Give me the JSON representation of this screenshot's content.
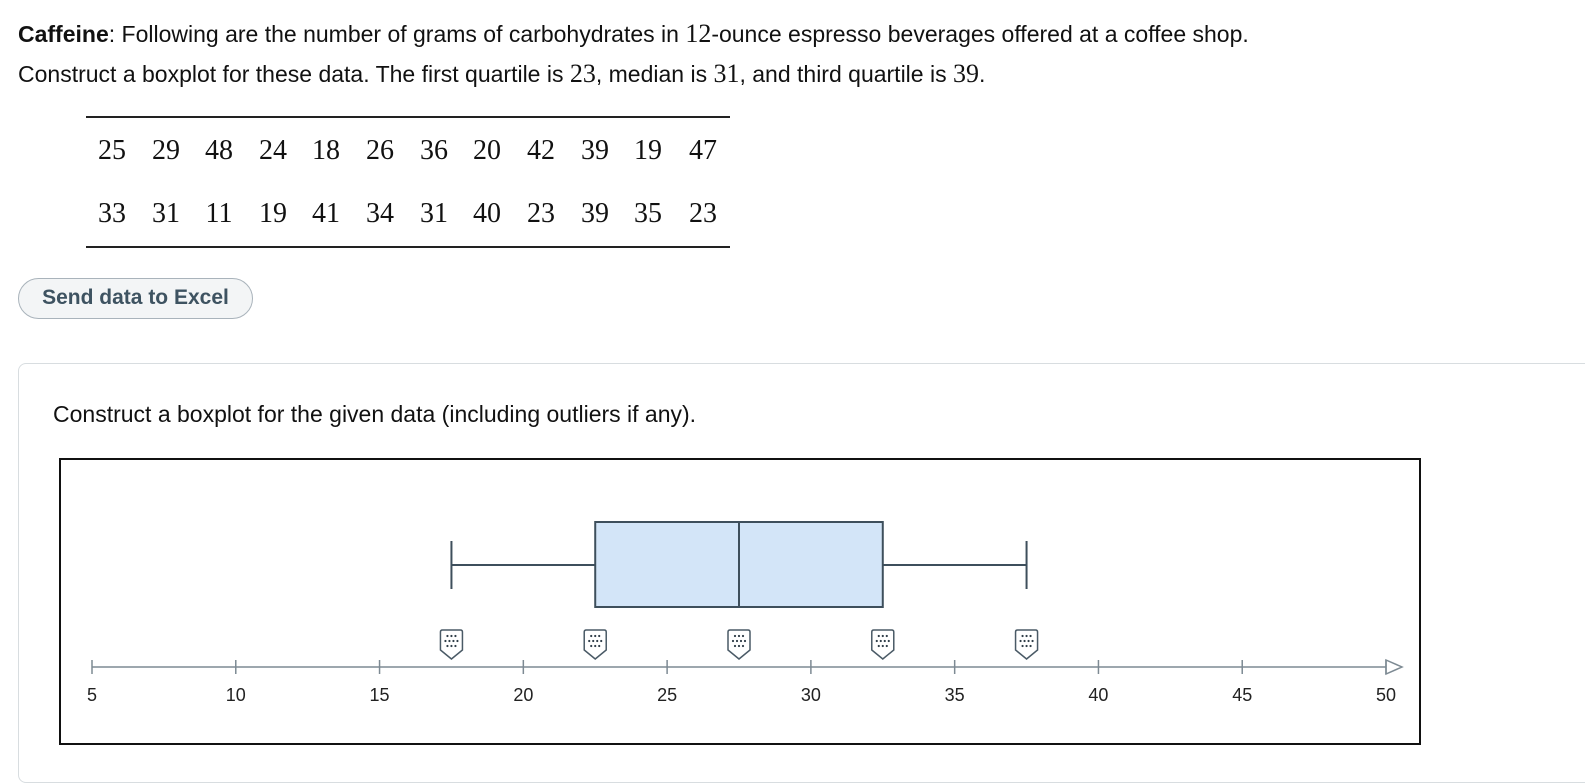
{
  "problem": {
    "label": "Caffeine",
    "text_1": ": Following are the number of grams of carbohydrates in ",
    "ounces": "12",
    "text_2": "-ounce espresso beverages offered at a coffee shop.",
    "text_3": "Construct a boxplot for these data. The first quartile is ",
    "q1": "23",
    "text_4": ", median is ",
    "median": "31",
    "text_5": ", and third quartile is ",
    "q3": "39",
    "text_6": "."
  },
  "data_table": {
    "rows": [
      [
        "25",
        "29",
        "48",
        "24",
        "18",
        "26",
        "36",
        "20",
        "42",
        "39",
        "19",
        "47"
      ],
      [
        "33",
        "31",
        "11",
        "19",
        "41",
        "34",
        "31",
        "40",
        "23",
        "39",
        "35",
        "23"
      ]
    ]
  },
  "excel_button": {
    "label": "Send data to Excel"
  },
  "instruction": "Construct a boxplot for the given data (including outliers if any).",
  "boxplot": {
    "axis_min": 5,
    "axis_max": 50,
    "tick_labels": [
      "5",
      "10",
      "15",
      "20",
      "25",
      "30",
      "35",
      "40",
      "45",
      "50"
    ],
    "tick_values": [
      5,
      10,
      15,
      20,
      25,
      30,
      35,
      40,
      45,
      50
    ],
    "current_values": {
      "min": 17.5,
      "q1": 22.5,
      "median": 27.5,
      "q3": 32.5,
      "max": 37.5
    },
    "handles": [
      {
        "name": "min-handle",
        "value": 17.5
      },
      {
        "name": "q1-handle",
        "value": 22.5
      },
      {
        "name": "median-handle",
        "value": 27.5
      },
      {
        "name": "q3-handle",
        "value": 32.5
      },
      {
        "name": "max-handle",
        "value": 37.5
      }
    ],
    "colors": {
      "box_fill": "#d3e5f8",
      "box_stroke": "#3e4f5c",
      "axis": "#7d8a93",
      "handle_fill": "#ffffff",
      "handle_stroke": "#4a5a66",
      "handle_dots": "#2f3d48"
    }
  }
}
